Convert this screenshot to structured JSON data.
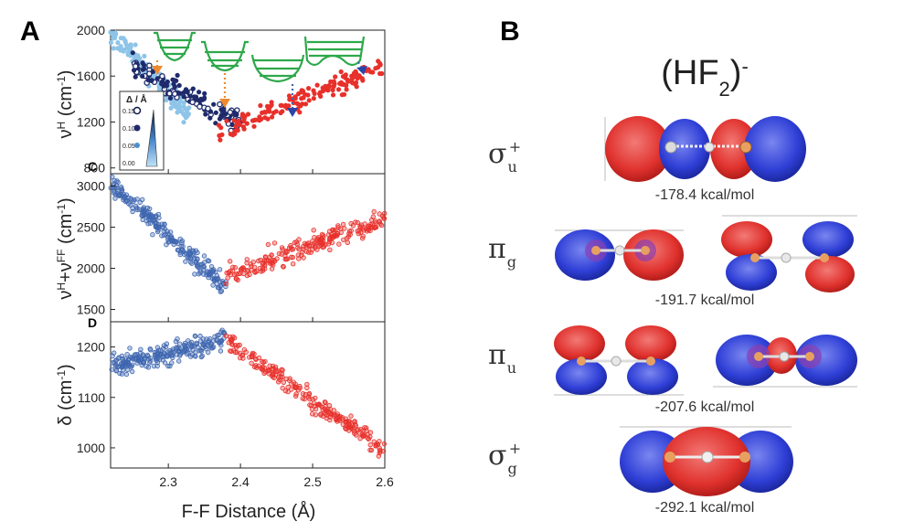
{
  "panel_labels": {
    "a": "A",
    "b": "B",
    "c": "C",
    "d": "D"
  },
  "colors": {
    "red": "#e8302b",
    "blue": "#3e66b0",
    "navy": "#1e2a6b",
    "light_blue": "#8ec4e8",
    "green": "#2ea84a",
    "orange": "#f08a30"
  },
  "chart_data": [
    {
      "panel": "A",
      "type": "scatter",
      "ylabel_base": "ν",
      "ylabel_sup": "H",
      "ylabel_unit": " (cm",
      "ylabel_unit_sup": "-1",
      "ylabel_close": ")",
      "xlim": [
        2.22,
        2.6
      ],
      "ylim": [
        750,
        2000
      ],
      "yticks": [
        "2000",
        "1600",
        "1200",
        "800"
      ],
      "ytick_values": [
        2000,
        1600,
        1200,
        800
      ],
      "series": [
        {
          "name": "small-delta",
          "color": "light_blue",
          "x_range": [
            2.22,
            2.33
          ],
          "trend": [
            [
              2.22,
              1990
            ],
            [
              2.33,
              1250
            ]
          ]
        },
        {
          "name": "mid-delta",
          "color": "navy",
          "x_range": [
            2.25,
            2.4
          ],
          "trend": [
            [
              2.25,
              1700
            ],
            [
              2.4,
              1180
            ]
          ]
        },
        {
          "name": "red-branch",
          "color": "red",
          "x_range": [
            2.37,
            2.6
          ],
          "trend": [
            [
              2.37,
              1100
            ],
            [
              2.6,
              1700
            ]
          ]
        }
      ],
      "inset_legend": {
        "title": "Δ / Å",
        "ticks": [
          "0.15",
          "0.10",
          "0.05",
          "0.00"
        ]
      }
    },
    {
      "panel": "C",
      "type": "scatter",
      "ylabel_base": "ν",
      "ylabel_sup": "H",
      "ylabel_plus": "+ν",
      "ylabel_sup2": "FF",
      "ylabel_unit": " (cm",
      "ylabel_unit_sup": "-1",
      "ylabel_close": ")",
      "xlim": [
        2.22,
        2.6
      ],
      "ylim": [
        1350,
        3150
      ],
      "yticks": [
        "3000",
        "2500",
        "2000",
        "1500"
      ],
      "ytick_values": [
        3000,
        2500,
        2000,
        1500
      ],
      "series": [
        {
          "name": "blue",
          "color": "blue",
          "x_range": [
            2.22,
            2.38
          ],
          "trend": [
            [
              2.22,
              3050
            ],
            [
              2.38,
              1750
            ]
          ]
        },
        {
          "name": "red",
          "color": "red",
          "x_range": [
            2.38,
            2.6
          ],
          "trend": [
            [
              2.38,
              1900
            ],
            [
              2.6,
              2600
            ]
          ]
        }
      ]
    },
    {
      "panel": "D",
      "type": "scatter",
      "ylabel_base": "δ",
      "ylabel_unit": " (cm",
      "ylabel_unit_sup": "-1",
      "ylabel_close": ")",
      "xlim": [
        2.22,
        2.6
      ],
      "ylim": [
        960,
        1250
      ],
      "yticks": [
        "1200",
        "1100",
        "1000"
      ],
      "ytick_values": [
        1200,
        1100,
        1000
      ],
      "xticks": [
        "2.3",
        "2.4",
        "2.5",
        "2.6"
      ],
      "xtick_values": [
        2.3,
        2.4,
        2.5,
        2.6
      ],
      "xlabel": "F-F Distance (Å)",
      "series": [
        {
          "name": "blue",
          "color": "blue",
          "x_range": [
            2.22,
            2.38
          ],
          "trend": [
            [
              2.22,
              1160
            ],
            [
              2.38,
              1215
            ]
          ]
        },
        {
          "name": "red",
          "color": "red",
          "x_range": [
            2.38,
            2.6
          ],
          "trend": [
            [
              2.38,
              1215
            ],
            [
              2.6,
              995
            ]
          ]
        }
      ]
    }
  ],
  "orbitals": {
    "molecule": {
      "main": "(HF",
      "sub": "2",
      "close": ")",
      "sup": "-"
    },
    "rows": [
      {
        "symbol": "σ",
        "sub": "u",
        "sup": "+",
        "energy": "-178.4 kcal/mol"
      },
      {
        "symbol": "π",
        "sub": "g",
        "sup": "",
        "energy": "-191.7 kcal/mol"
      },
      {
        "symbol": "π",
        "sub": "u",
        "sup": "",
        "energy": "-207.6 kcal/mol"
      },
      {
        "symbol": "σ",
        "sub": "g",
        "sup": "+",
        "energy": "-292.1 kcal/mol"
      }
    ]
  }
}
